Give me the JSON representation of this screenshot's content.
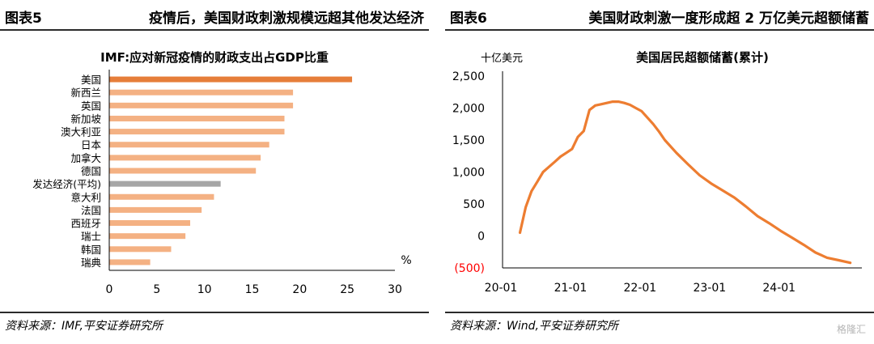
{
  "left": {
    "fig_num": "图表5",
    "fig_title": "疫情后，美国财政刺激规模远超其他发达经济",
    "source": "资料来源：IMF,平安证券研究所"
  },
  "right": {
    "fig_num": "图表6",
    "fig_title": "美国财政刺激一度形成超 2 万亿美元超额储蓄",
    "source": "资料来源：Wind,平安证券研究所"
  },
  "watermark": "格隆汇",
  "chart_data": [
    {
      "type": "bar",
      "orientation": "horizontal",
      "title": "IMF:应对新冠疫情的财政支出占GDP比重",
      "unit_label": "%",
      "categories": [
        "美国",
        "新西兰",
        "英国",
        "新加坡",
        "澳大利亚",
        "日本",
        "加拿大",
        "德国",
        "发达经济(平均)",
        "意大利",
        "法国",
        "西班牙",
        "瑞士",
        "韩国",
        "瑞典"
      ],
      "values": [
        25.5,
        19.3,
        19.3,
        18.4,
        18.4,
        16.8,
        15.9,
        15.4,
        11.7,
        11.0,
        9.7,
        8.5,
        8.0,
        6.5,
        4.3
      ],
      "highlight": {
        "美国": "#e67e3a",
        "发达经济(平均)": "#a6a6a6"
      },
      "bar_color": "#f4b183",
      "xlim": [
        0,
        30
      ],
      "xticks": [
        0,
        5,
        10,
        15,
        20,
        25,
        30
      ],
      "grid": false
    },
    {
      "type": "line",
      "title": "美国居民超额储蓄(累计)",
      "ylabel": "十亿美元",
      "ylim": [
        -500,
        2500
      ],
      "yticks": [
        2500,
        2000,
        1500,
        1000,
        500,
        0,
        -500
      ],
      "ytick_labels": [
        "2,500",
        "2,000",
        "1,500",
        "1,000",
        "500",
        "0",
        "(500)"
      ],
      "xticks": [
        "20-01",
        "21-01",
        "22-01",
        "23-01",
        "24-01"
      ],
      "x_start": "2020-01",
      "series": [
        {
          "name": "美国居民超额储蓄(累计)",
          "color": "#ed7d31",
          "x": [
            3,
            4,
            5,
            6,
            7,
            8,
            9,
            10,
            11,
            12,
            13,
            14,
            15,
            16,
            17,
            18,
            19,
            20,
            21,
            22,
            23,
            24,
            25,
            26,
            27,
            28,
            30,
            32,
            34,
            36,
            38,
            40,
            42,
            44,
            46,
            48,
            50,
            52,
            54,
            56,
            58,
            60
          ],
          "values": [
            50,
            450,
            700,
            850,
            1000,
            1080,
            1160,
            1240,
            1300,
            1360,
            1550,
            1640,
            1970,
            2040,
            2060,
            2080,
            2100,
            2100,
            2080,
            2050,
            2000,
            1950,
            1850,
            1750,
            1630,
            1500,
            1300,
            1120,
            950,
            820,
            710,
            600,
            460,
            310,
            200,
            80,
            -30,
            -140,
            -260,
            -340,
            -380,
            -420
          ]
        }
      ]
    }
  ]
}
